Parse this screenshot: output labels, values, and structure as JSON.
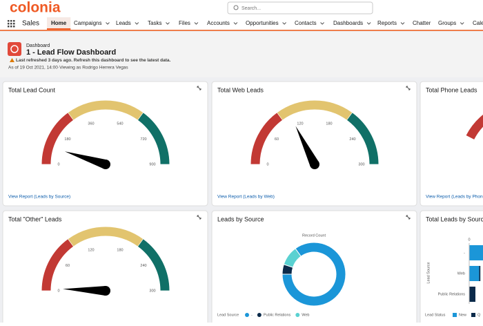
{
  "brand": "colonia",
  "search_placeholder": "Search...",
  "app": "Sales",
  "nav": [
    "Home",
    "Campaigns",
    "Leads",
    "Tasks",
    "Files",
    "Accounts",
    "Opportunities",
    "Contacts",
    "Dashboards",
    "Reports",
    "Chatter",
    "Groups",
    "Cale"
  ],
  "header": {
    "type_label": "Dashboard",
    "title": "1 - Lead Flow Dashboard",
    "warning": "Last refreshed 3 days ago. Refresh this dashboard to see the latest data.",
    "as_of": "As of 19 Oct 2021, 14:00·Viewing as Rodrigo Herrera Vegas"
  },
  "gauges": [
    {
      "title": "Total Lead Count",
      "link": "View Report (Leads by Source)",
      "min": 0,
      "max": 900,
      "ticks": [
        0,
        180,
        360,
        540,
        720,
        900
      ],
      "value": 88,
      "bands": [
        {
          "to": 270,
          "color": "#c23934"
        },
        {
          "to": 630,
          "color": "#e2c46f"
        },
        {
          "to": 900,
          "color": "#107067"
        }
      ]
    },
    {
      "title": "Total Web Leads",
      "link": "View Report (Leads by Web)",
      "min": 0,
      "max": 300,
      "ticks": [
        0,
        60,
        120,
        180,
        240,
        300
      ],
      "value": 106,
      "bands": [
        {
          "to": 90,
          "color": "#c23934"
        },
        {
          "to": 210,
          "color": "#e2c46f"
        },
        {
          "to": 300,
          "color": "#107067"
        }
      ]
    },
    {
      "title": "Total \"Other\" Leads",
      "min": 0,
      "max": 300,
      "ticks": [
        0,
        60,
        120,
        180,
        240,
        300
      ],
      "value": 4,
      "bands": [
        {
          "to": 90,
          "color": "#c23934"
        },
        {
          "to": 210,
          "color": "#e2c46f"
        },
        {
          "to": 300,
          "color": "#107067"
        }
      ]
    }
  ],
  "phone": {
    "title": "Total Phone Leads",
    "link": "View Report (Leads by Phone"
  },
  "donut": {
    "title": "Leads by Source",
    "label": "Record Count",
    "legend_title": "Lead Source",
    "categories": [
      "-",
      "Public Relations",
      "Web"
    ],
    "values": [
      85,
      5,
      10
    ],
    "colors": [
      "#1b96d8",
      "#0b2a4a",
      "#5ad1d1"
    ]
  },
  "bars": {
    "title": "Total Leads by Source",
    "y_label": "Lead Source",
    "legend_title": "Lead Status",
    "categories": [
      "-",
      "Web",
      "Public Relations"
    ],
    "xlim": [
      0,
      150
    ],
    "xticks": [
      0
    ],
    "series": [
      {
        "name": "New",
        "color": "#1b96d8",
        "values": [
          75,
          8,
          0
        ]
      },
      {
        "name": "Q",
        "color": "#0b2a4a",
        "values": [
          0,
          1,
          5
        ]
      }
    ]
  }
}
